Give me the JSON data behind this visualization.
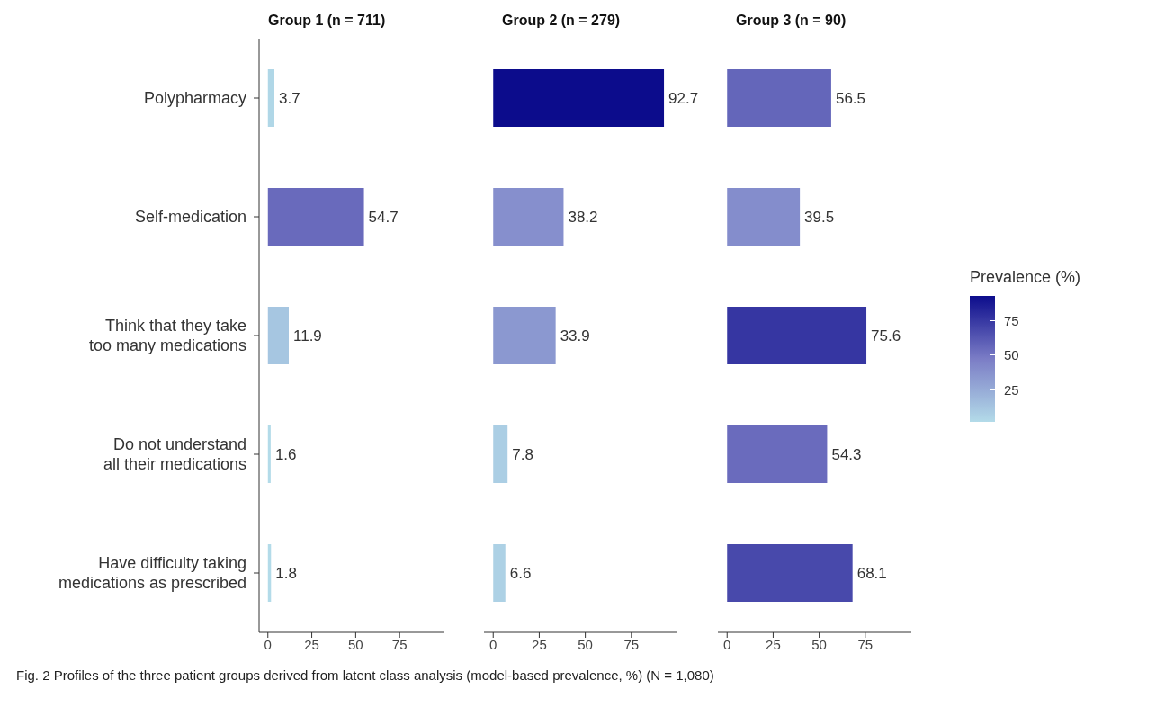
{
  "chart_data": [
    {
      "type": "bar",
      "orientation": "horizontal",
      "title": "Group 1 (n = 711)",
      "categories": [
        "Polypharmacy",
        "Self-medication",
        "Think that they take too many medications",
        "Do not understand all their medications",
        "Have difficulty taking medications as prescribed"
      ],
      "values": [
        3.7,
        54.7,
        11.9,
        1.6,
        1.8
      ],
      "xlim": [
        -5,
        100
      ],
      "xticks": [
        0,
        25,
        50,
        75
      ],
      "data_labels": true,
      "annotations": [
        "Fig. 2 Profiles of the three patient groups derived from latent class analysis (model-based prevalence, %) (N = 1,080)"
      ]
    },
    {
      "type": "bar",
      "orientation": "horizontal",
      "title": "Group 2 (n = 279)",
      "values": [
        92.7,
        38.2,
        33.9,
        7.8,
        6.6
      ],
      "xlim": [
        -5,
        100
      ],
      "xticks": [
        0,
        25,
        50,
        75
      ],
      "data_labels": true,
      "tick_labels": "x"
    },
    {
      "type": "bar",
      "orientation": "horizontal",
      "title": "Group 3 (n = 90)",
      "values": [
        56.5,
        39.5,
        75.6,
        54.3,
        68.1
      ],
      "xlim": [
        -5,
        100
      ],
      "xticks": [
        0,
        25,
        50,
        75
      ],
      "data_labels": true,
      "tick_labels": "x",
      "clabel": "Prevalence (%)",
      "clim": [
        1.6,
        92.7
      ],
      "cticks": [
        25,
        50,
        75
      ]
    }
  ]
}
